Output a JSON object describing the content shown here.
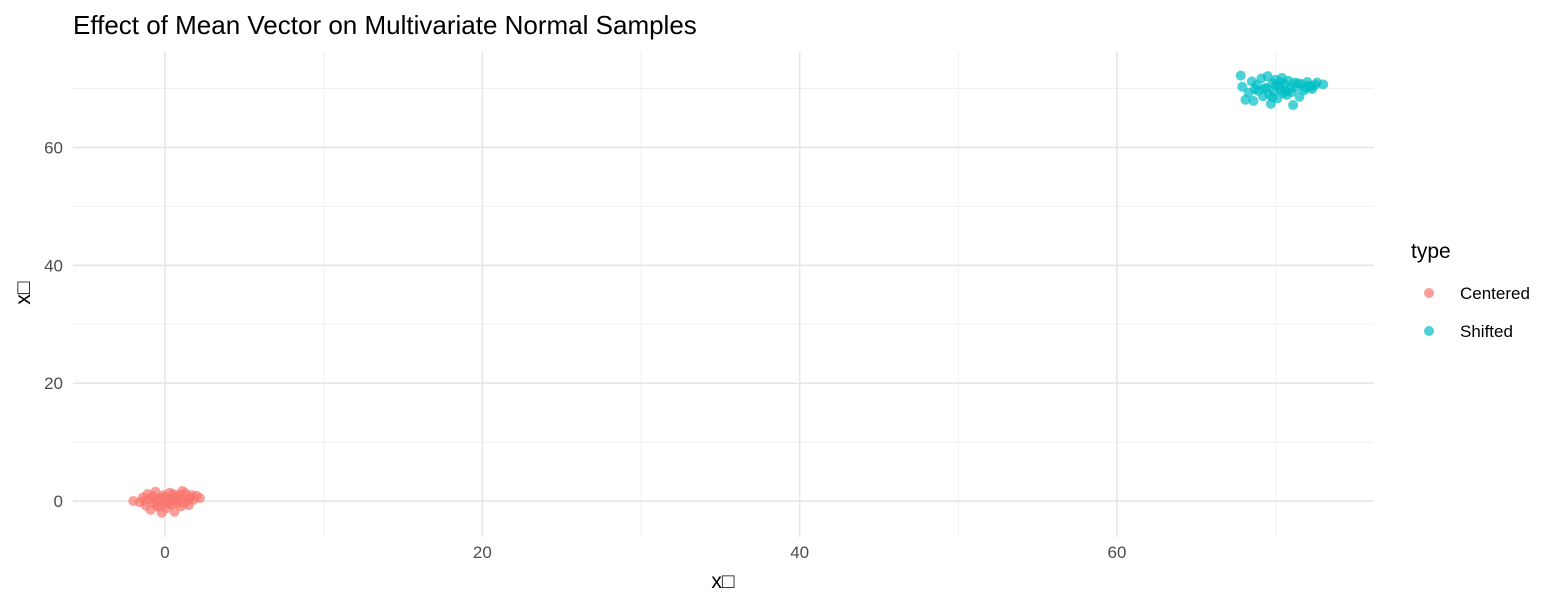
{
  "chart_data": {
    "type": "scatter",
    "title": "Effect of Mean Vector on Multivariate Normal Samples",
    "xlabel": "x□",
    "ylabel": "x□",
    "xlim": [
      -5.8,
      76.2
    ],
    "ylim": [
      -6.1,
      76.2
    ],
    "x_ticks": [
      0,
      20,
      40,
      60
    ],
    "y_ticks": [
      0,
      20,
      40,
      60
    ],
    "grid": true,
    "legend": {
      "title": "type",
      "position": "right",
      "entries": [
        "Centered",
        "Shifted"
      ]
    },
    "series": [
      {
        "name": "Centered",
        "color": "#F8766D",
        "points": [
          [
            -2.0,
            0.0
          ],
          [
            -1.6,
            -0.2
          ],
          [
            -1.4,
            0.6
          ],
          [
            -1.2,
            -0.8
          ],
          [
            -1.1,
            1.2
          ],
          [
            -1.0,
            0.3
          ],
          [
            -0.9,
            -1.5
          ],
          [
            -0.8,
            0.9
          ],
          [
            -0.7,
            -0.4
          ],
          [
            -0.6,
            1.6
          ],
          [
            -0.5,
            0.1
          ],
          [
            -0.4,
            -1.0
          ],
          [
            -0.3,
            0.5
          ],
          [
            -0.2,
            -2.0
          ],
          [
            -0.1,
            1.0
          ],
          [
            0.0,
            -0.3
          ],
          [
            0.0,
            0.7
          ],
          [
            0.1,
            -1.2
          ],
          [
            0.2,
            0.2
          ],
          [
            0.3,
            1.4
          ],
          [
            0.4,
            -0.6
          ],
          [
            0.5,
            0.0
          ],
          [
            0.6,
            -1.8
          ],
          [
            0.7,
            0.8
          ],
          [
            0.8,
            -0.2
          ],
          [
            0.9,
            1.1
          ],
          [
            1.0,
            -0.9
          ],
          [
            1.1,
            0.4
          ],
          [
            1.2,
            -0.4
          ],
          [
            1.3,
            1.3
          ],
          [
            1.4,
            0.1
          ],
          [
            1.5,
            -0.7
          ],
          [
            1.6,
            0.6
          ],
          [
            1.7,
            1.0
          ],
          [
            1.8,
            0.2
          ],
          [
            2.0,
            0.9
          ],
          [
            2.2,
            0.5
          ],
          [
            -0.5,
            -0.8
          ],
          [
            0.3,
            0.4
          ],
          [
            -0.2,
            0.3
          ],
          [
            0.7,
            -0.1
          ],
          [
            1.1,
            1.7
          ],
          [
            -1.3,
            0.0
          ],
          [
            0.2,
            -0.5
          ],
          [
            0.9,
            0.3
          ],
          [
            -0.7,
            0.6
          ],
          [
            1.5,
            0.4
          ],
          [
            0.5,
            1.2
          ]
        ]
      },
      {
        "name": "Shifted",
        "color": "#00BFC4",
        "points": [
          [
            67.8,
            72.2
          ],
          [
            67.9,
            70.3
          ],
          [
            68.1,
            68.1
          ],
          [
            68.3,
            69.3
          ],
          [
            68.5,
            71.2
          ],
          [
            68.6,
            67.9
          ],
          [
            68.8,
            70.6
          ],
          [
            68.9,
            69.6
          ],
          [
            69.1,
            71.7
          ],
          [
            69.2,
            68.7
          ],
          [
            69.4,
            70.1
          ],
          [
            69.5,
            72.1
          ],
          [
            69.6,
            69.0
          ],
          [
            69.7,
            67.4
          ],
          [
            69.8,
            70.9
          ],
          [
            69.9,
            69.5
          ],
          [
            70.0,
            71.5
          ],
          [
            70.1,
            68.3
          ],
          [
            70.2,
            70.4
          ],
          [
            70.3,
            69.8
          ],
          [
            70.4,
            71.8
          ],
          [
            70.5,
            69.2
          ],
          [
            70.6,
            70.7
          ],
          [
            70.7,
            68.9
          ],
          [
            70.8,
            71.3
          ],
          [
            70.9,
            70.0
          ],
          [
            71.0,
            69.4
          ],
          [
            71.1,
            67.2
          ],
          [
            71.2,
            71.0
          ],
          [
            71.3,
            70.2
          ],
          [
            71.5,
            68.6
          ],
          [
            71.6,
            70.8
          ],
          [
            71.8,
            69.7
          ],
          [
            72.0,
            71.1
          ],
          [
            72.2,
            70.3
          ],
          [
            72.3,
            69.9
          ],
          [
            72.5,
            70.6
          ],
          [
            72.6,
            71.0
          ],
          [
            73.0,
            70.7
          ],
          [
            70.0,
            70.5
          ],
          [
            69.3,
            70.0
          ],
          [
            70.6,
            69.6
          ],
          [
            71.4,
            70.9
          ],
          [
            68.7,
            69.9
          ],
          [
            70.3,
            71.1
          ],
          [
            69.8,
            68.5
          ],
          [
            71.9,
            70.1
          ],
          [
            72.1,
            70.5
          ]
        ]
      }
    ]
  }
}
